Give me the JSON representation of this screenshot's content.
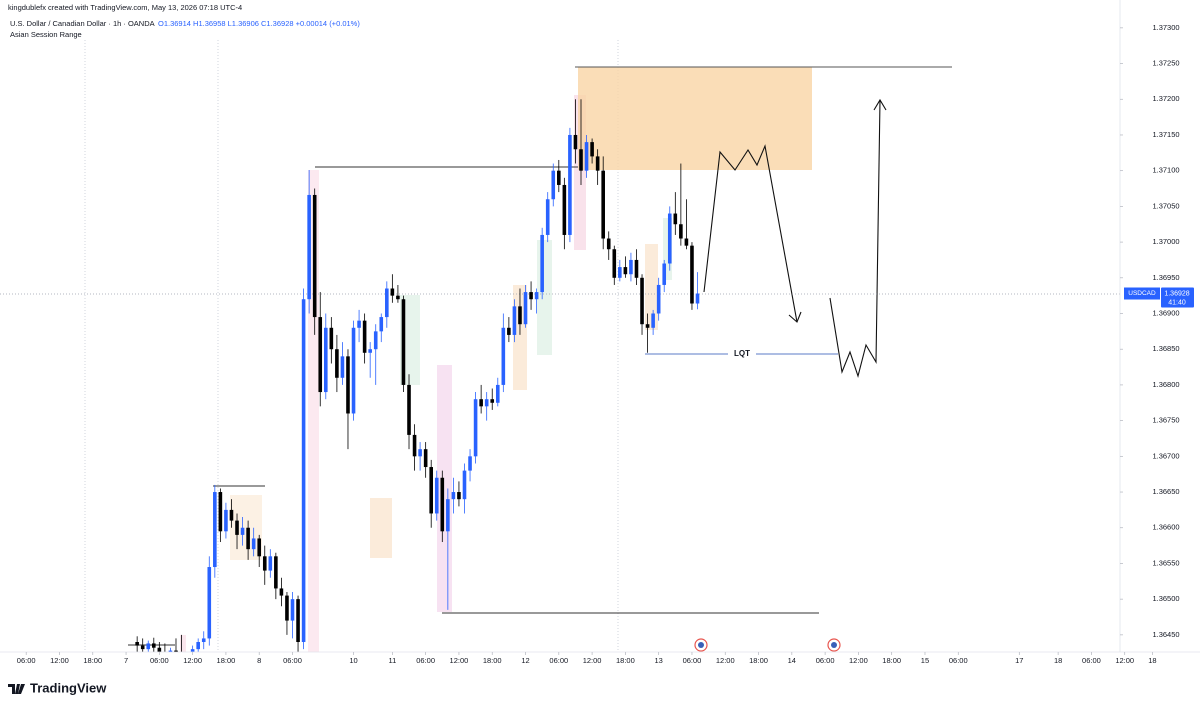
{
  "chart_data": {
    "type": "candlestick",
    "credit": "kingdublefx created with TradingView.com, May 13, 2026 07:18 UTC-4",
    "title": "U.S. Dollar / Canadian Dollar · 1h · OANDA",
    "ohlc_legend": "O1.36914 H1.36958 L1.36906 C1.36928 +0.00014 (+0.01%)",
    "subtitle": "Asian Session Range",
    "annotations": [
      "LQT"
    ],
    "brand": "TradingView",
    "price_tag": {
      "symbol": "USDCAD",
      "price": 1.36928,
      "countdown": "41:40"
    },
    "up_color": "#2962ff",
    "down_color": "#000000",
    "grid": false,
    "xlim": [
      -4,
      204
    ],
    "ylim": [
      1.36426,
      1.37339
    ],
    "xticks": [
      {
        "value": 0,
        "label": "06:00"
      },
      {
        "value": 6,
        "label": "12:00"
      },
      {
        "value": 12,
        "label": "18:00"
      },
      {
        "value": 18,
        "label": "7"
      },
      {
        "value": 24,
        "label": "06:00"
      },
      {
        "value": 30,
        "label": "12:00"
      },
      {
        "value": 36,
        "label": "18:00"
      },
      {
        "value": 42,
        "label": "8"
      },
      {
        "value": 48,
        "label": "06:00"
      },
      {
        "value": 59,
        "label": "10"
      },
      {
        "value": 66,
        "label": "11"
      },
      {
        "value": 72,
        "label": "06:00"
      },
      {
        "value": 78,
        "label": "12:00"
      },
      {
        "value": 84,
        "label": "18:00"
      },
      {
        "value": 90,
        "label": "12"
      },
      {
        "value": 96,
        "label": "06:00"
      },
      {
        "value": 102,
        "label": "12:00"
      },
      {
        "value": 108,
        "label": "18:00"
      },
      {
        "value": 114,
        "label": "13"
      },
      {
        "value": 120,
        "label": "06:00"
      },
      {
        "value": 126,
        "label": "12:00"
      },
      {
        "value": 132,
        "label": "18:00"
      },
      {
        "value": 138,
        "label": "14"
      },
      {
        "value": 144,
        "label": "06:00"
      },
      {
        "value": 150,
        "label": "12:00"
      },
      {
        "value": 156,
        "label": "18:00"
      },
      {
        "value": 162,
        "label": "15"
      },
      {
        "value": 168,
        "label": "06:00"
      },
      {
        "value": 179,
        "label": "17"
      },
      {
        "value": 186,
        "label": "18"
      },
      {
        "value": 192,
        "label": "06:00"
      },
      {
        "value": 198,
        "label": "12:00"
      },
      {
        "value": 203,
        "label": "18"
      }
    ],
    "yticks": [
      {
        "value": 1.3645,
        "label": "1.36450"
      },
      {
        "value": 1.365,
        "label": "1.36500"
      },
      {
        "value": 1.3655,
        "label": "1.36550"
      },
      {
        "value": 1.366,
        "label": "1.36600"
      },
      {
        "value": 1.3665,
        "label": "1.36650"
      },
      {
        "value": 1.367,
        "label": "1.36700"
      },
      {
        "value": 1.3675,
        "label": "1.36750"
      },
      {
        "value": 1.368,
        "label": "1.36800"
      },
      {
        "value": 1.3685,
        "label": "1.36850"
      },
      {
        "value": 1.369,
        "label": "1.36900"
      },
      {
        "value": 1.3695,
        "label": "1.36950"
      },
      {
        "value": 1.37,
        "label": "1.37000"
      },
      {
        "value": 1.3705,
        "label": "1.37050"
      },
      {
        "value": 1.371,
        "label": "1.37100"
      },
      {
        "value": 1.3715,
        "label": "1.37150"
      },
      {
        "value": 1.372,
        "label": "1.37200"
      },
      {
        "value": 1.3725,
        "label": "1.37250"
      },
      {
        "value": 1.373,
        "label": "1.37300"
      }
    ],
    "x": [
      20,
      21,
      22,
      23,
      24,
      25,
      26,
      27,
      28,
      29,
      30,
      31,
      32,
      33,
      34,
      35,
      36,
      37,
      38,
      39,
      40,
      41,
      42,
      43,
      44,
      45,
      46,
      47,
      48,
      49,
      50,
      51,
      52,
      53,
      54,
      55,
      56,
      57,
      58,
      59,
      60,
      61,
      62,
      63,
      64,
      65,
      66,
      67,
      68,
      69,
      70,
      71,
      72,
      73,
      74,
      75,
      76,
      77,
      78,
      79,
      80,
      81,
      82,
      83,
      84,
      85,
      86,
      87,
      88,
      89,
      90,
      91,
      92,
      93,
      94,
      95,
      96,
      97,
      98,
      99,
      100,
      101,
      102,
      103,
      104,
      105,
      106,
      107,
      108,
      109,
      110,
      111,
      112,
      113,
      114,
      115,
      116,
      117,
      118,
      119,
      120,
      121
    ],
    "open": [
      1.3644,
      1.36435,
      1.3643,
      1.36438,
      1.36432,
      1.36425,
      1.3642,
      1.36428,
      1.36422,
      1.3641,
      1.36418,
      1.3643,
      1.3644,
      1.36445,
      1.36545,
      1.3665,
      1.36595,
      1.36625,
      1.3661,
      1.3659,
      1.366,
      1.3657,
      1.36585,
      1.3656,
      1.3654,
      1.3656,
      1.36515,
      1.36505,
      1.3647,
      1.365,
      1.3644,
      1.3692,
      1.37066,
      1.36895,
      1.3679,
      1.3688,
      1.3685,
      1.3681,
      1.3684,
      1.3676,
      1.3688,
      1.3689,
      1.36845,
      1.3685,
      1.36875,
      1.36895,
      1.36935,
      1.36925,
      1.3692,
      1.368,
      1.3673,
      1.367,
      1.3671,
      1.36685,
      1.3662,
      1.3667,
      1.36595,
      1.3664,
      1.3665,
      1.3664,
      1.3668,
      1.367,
      1.3678,
      1.3677,
      1.3678,
      1.36775,
      1.368,
      1.3688,
      1.3687,
      1.3691,
      1.36885,
      1.3693,
      1.3692,
      1.3693,
      1.3701,
      1.3706,
      1.371,
      1.3708,
      1.3701,
      1.3715,
      1.3713,
      1.371,
      1.3714,
      1.3712,
      1.371,
      1.37005,
      1.3699,
      1.3695,
      1.36965,
      1.36955,
      1.36975,
      1.3695,
      1.36885,
      1.3688,
      1.369,
      1.3694,
      1.3697,
      1.3704,
      1.37025,
      1.37005,
      1.36995,
      1.36914
    ],
    "high": [
      1.36448,
      1.36445,
      1.36442,
      1.36446,
      1.3644,
      1.36438,
      1.36432,
      1.36445,
      1.3645,
      1.36425,
      1.36435,
      1.36445,
      1.36455,
      1.3656,
      1.3666,
      1.36655,
      1.36635,
      1.3664,
      1.3662,
      1.36615,
      1.3661,
      1.366,
      1.3659,
      1.36575,
      1.3657,
      1.36565,
      1.3653,
      1.3651,
      1.3651,
      1.36505,
      1.36935,
      1.37101,
      1.37075,
      1.3693,
      1.369,
      1.36895,
      1.3687,
      1.3686,
      1.3685,
      1.3689,
      1.36905,
      1.369,
      1.3686,
      1.36885,
      1.369,
      1.36945,
      1.36955,
      1.3694,
      1.36925,
      1.36815,
      1.36745,
      1.3672,
      1.3672,
      1.36695,
      1.3668,
      1.3668,
      1.36655,
      1.3667,
      1.36665,
      1.3669,
      1.3671,
      1.3679,
      1.368,
      1.3679,
      1.36795,
      1.3681,
      1.369,
      1.36895,
      1.3692,
      1.36935,
      1.3694,
      1.36945,
      1.36935,
      1.3702,
      1.3707,
      1.3711,
      1.37115,
      1.3709,
      1.3716,
      1.372,
      1.372,
      1.3715,
      1.37145,
      1.3713,
      1.3712,
      1.37015,
      1.36995,
      1.36975,
      1.3698,
      1.36985,
      1.3699,
      1.36955,
      1.369,
      1.36905,
      1.3695,
      1.36975,
      1.3705,
      1.3707,
      1.3711,
      1.3706,
      1.37,
      1.36958
    ],
    "low": [
      1.36425,
      1.3642,
      1.36418,
      1.36425,
      1.36415,
      1.3641,
      1.36405,
      1.36415,
      1.364,
      1.36395,
      1.36405,
      1.36415,
      1.3643,
      1.36435,
      1.3653,
      1.3658,
      1.36585,
      1.366,
      1.3657,
      1.36575,
      1.36555,
      1.3656,
      1.36545,
      1.3652,
      1.3653,
      1.365,
      1.3649,
      1.3645,
      1.36445,
      1.3642,
      1.3643,
      1.369,
      1.3687,
      1.3677,
      1.3678,
      1.3683,
      1.3679,
      1.368,
      1.3671,
      1.3675,
      1.3686,
      1.3683,
      1.3681,
      1.368,
      1.3686,
      1.3688,
      1.36915,
      1.36915,
      1.3679,
      1.3671,
      1.3668,
      1.3668,
      1.3667,
      1.366,
      1.3661,
      1.3658,
      1.36485,
      1.3662,
      1.3663,
      1.3662,
      1.36665,
      1.3669,
      1.3676,
      1.3675,
      1.36765,
      1.3677,
      1.3679,
      1.3686,
      1.3686,
      1.3687,
      1.3688,
      1.36905,
      1.369,
      1.3692,
      1.37,
      1.3705,
      1.3707,
      1.3699,
      1.37,
      1.3711,
      1.3708,
      1.3709,
      1.3711,
      1.3708,
      1.3699,
      1.36975,
      1.3694,
      1.36945,
      1.3695,
      1.36945,
      1.3694,
      1.3687,
      1.36845,
      1.3687,
      1.3689,
      1.3693,
      1.3696,
      1.3701,
      1.36995,
      1.3699,
      1.36905,
      1.36906
    ],
    "close": [
      1.36435,
      1.3643,
      1.36438,
      1.36432,
      1.36425,
      1.3642,
      1.36428,
      1.36422,
      1.3641,
      1.36418,
      1.3643,
      1.3644,
      1.36445,
      1.36545,
      1.3665,
      1.36595,
      1.36625,
      1.3661,
      1.3659,
      1.366,
      1.3657,
      1.36585,
      1.3656,
      1.3654,
      1.3656,
      1.36515,
      1.36505,
      1.3647,
      1.365,
      1.3644,
      1.3692,
      1.37066,
      1.36895,
      1.3679,
      1.3688,
      1.3685,
      1.3681,
      1.3684,
      1.3676,
      1.3688,
      1.3689,
      1.36845,
      1.3685,
      1.36875,
      1.36895,
      1.36935,
      1.36925,
      1.3692,
      1.368,
      1.3673,
      1.367,
      1.3671,
      1.36685,
      1.3662,
      1.3667,
      1.36595,
      1.3664,
      1.3665,
      1.3664,
      1.3668,
      1.367,
      1.3678,
      1.3677,
      1.3678,
      1.36775,
      1.368,
      1.3688,
      1.3687,
      1.3691,
      1.36885,
      1.3693,
      1.3692,
      1.3693,
      1.3701,
      1.3706,
      1.371,
      1.3708,
      1.3701,
      1.3715,
      1.3713,
      1.371,
      1.3714,
      1.3712,
      1.371,
      1.37005,
      1.3699,
      1.3695,
      1.36965,
      1.36955,
      1.36975,
      1.3695,
      1.36885,
      1.3688,
      1.369,
      1.3694,
      1.3697,
      1.3704,
      1.37025,
      1.37005,
      1.36995,
      1.36914,
      1.36928
    ]
  }
}
